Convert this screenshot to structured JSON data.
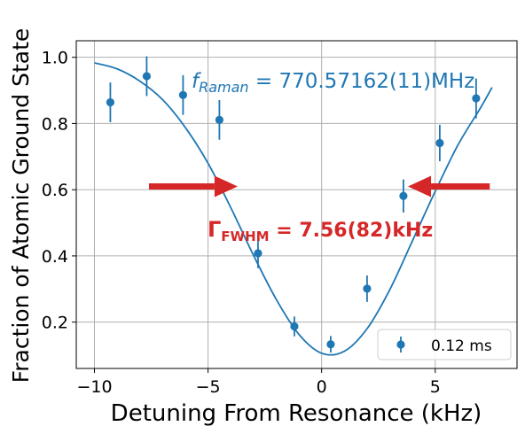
{
  "chart_data": {
    "type": "scatter",
    "xlabel": "Detuning From Resonance (kHz)",
    "ylabel": "Fraction of Atomic Ground State",
    "xlim": [
      -10.8,
      8.6
    ],
    "ylim": [
      0.06,
      1.05
    ],
    "xticks": [
      -10,
      -5,
      0,
      5
    ],
    "xtick_labels": [
      "−10",
      "−5",
      "0",
      "5"
    ],
    "yticks": [
      0.2,
      0.4,
      0.6,
      0.8,
      1.0
    ],
    "ytick_labels": [
      "0.2",
      "0.4",
      "0.6",
      "0.8",
      "1.0"
    ],
    "grid": true,
    "legend_position": "lower-right",
    "series": [
      {
        "name": "0.12 ms",
        "kind": "errorbar",
        "color": "#1f77b4",
        "x": [
          -9.3,
          -7.7,
          -6.1,
          -4.5,
          -2.8,
          -1.2,
          0.4,
          2.0,
          3.6,
          5.2,
          6.8
        ],
        "y": [
          0.864,
          0.943,
          0.886,
          0.811,
          0.408,
          0.187,
          0.133,
          0.301,
          0.581,
          0.741,
          0.876
        ],
        "yerr": [
          0.06,
          0.06,
          0.06,
          0.06,
          0.045,
          0.03,
          0.025,
          0.04,
          0.05,
          0.055,
          0.06
        ]
      },
      {
        "kind": "fit",
        "color": "#1f77b4",
        "x": [
          -10.0,
          -9.0,
          -8.0,
          -7.0,
          -6.0,
          -5.0,
          -4.0,
          -3.0,
          -2.0,
          -1.0,
          0.0,
          1.0,
          2.0,
          3.0,
          4.0,
          5.0,
          6.0,
          7.0,
          7.5
        ],
        "y": [
          0.983,
          0.965,
          0.928,
          0.872,
          0.788,
          0.68,
          0.546,
          0.402,
          0.269,
          0.163,
          0.106,
          0.112,
          0.18,
          0.298,
          0.446,
          0.595,
          0.735,
          0.848,
          0.909
        ]
      }
    ],
    "annotations": {
      "raman_text": "770.57162(11)MHz",
      "raman_symbol": "f",
      "raman_subscript": "Raman",
      "raman_eq": " = ",
      "fwhm_symbol": "Γ",
      "fwhm_subscript": "FWHM",
      "fwhm_text": " = 7.56(82)kHz",
      "arrow_left": {
        "x_from": -7.6,
        "x_to": -3.7,
        "y": 0.61
      },
      "arrow_right": {
        "x_from": 7.4,
        "x_to": 3.8,
        "y": 0.61
      },
      "annotation_color": "#d62728"
    }
  }
}
